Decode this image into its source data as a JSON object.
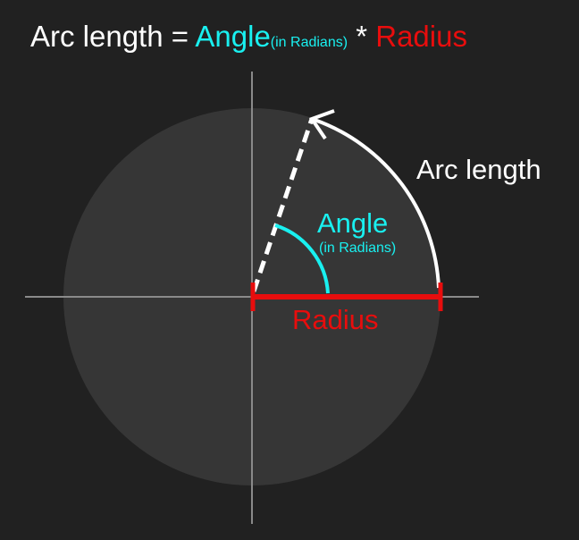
{
  "formula": {
    "lhs": "Arc length =",
    "angle": "Angle",
    "angle_sub": "(in Radians)",
    "times": "*",
    "radius": "Radius"
  },
  "labels": {
    "arc": "Arc length",
    "angle": "Angle",
    "angle_sub": "(in Radians)",
    "radius": "Radius"
  },
  "colors": {
    "background": "#212121",
    "circle": "#363636",
    "axes": "#8a8a8a",
    "text": "#ffffff",
    "angle": "#19f0f0",
    "radius": "#e80d0d",
    "arc": "#ffffff"
  }
}
